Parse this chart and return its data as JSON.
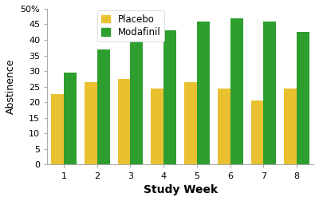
{
  "weeks": [
    1,
    2,
    3,
    4,
    5,
    6,
    7,
    8
  ],
  "placebo": [
    22.5,
    26.5,
    27.5,
    24.5,
    26.5,
    24.5,
    20.5,
    24.5
  ],
  "modafinil": [
    29.5,
    37.0,
    42.5,
    43.0,
    46.0,
    47.0,
    46.0,
    42.5
  ],
  "placebo_color": "#E8C030",
  "modafinil_color": "#2E9E2E",
  "bar_edge_color": "none",
  "xlabel": "Study Week",
  "ylabel": "Abstinence",
  "ylim": [
    0,
    50
  ],
  "yticks": [
    0,
    5,
    10,
    15,
    20,
    25,
    30,
    35,
    40,
    45,
    50
  ],
  "ytick_labels": [
    "0",
    "5",
    "10",
    "15",
    "20",
    "25",
    "30",
    "35",
    "40",
    "45",
    "50%"
  ],
  "legend_placebo": "Placebo",
  "legend_modafinil": "Modafinil",
  "bar_width": 0.38,
  "background_color": "#ffffff",
  "xlabel_fontsize": 10,
  "ylabel_fontsize": 9,
  "tick_fontsize": 8,
  "legend_fontsize": 8.5
}
